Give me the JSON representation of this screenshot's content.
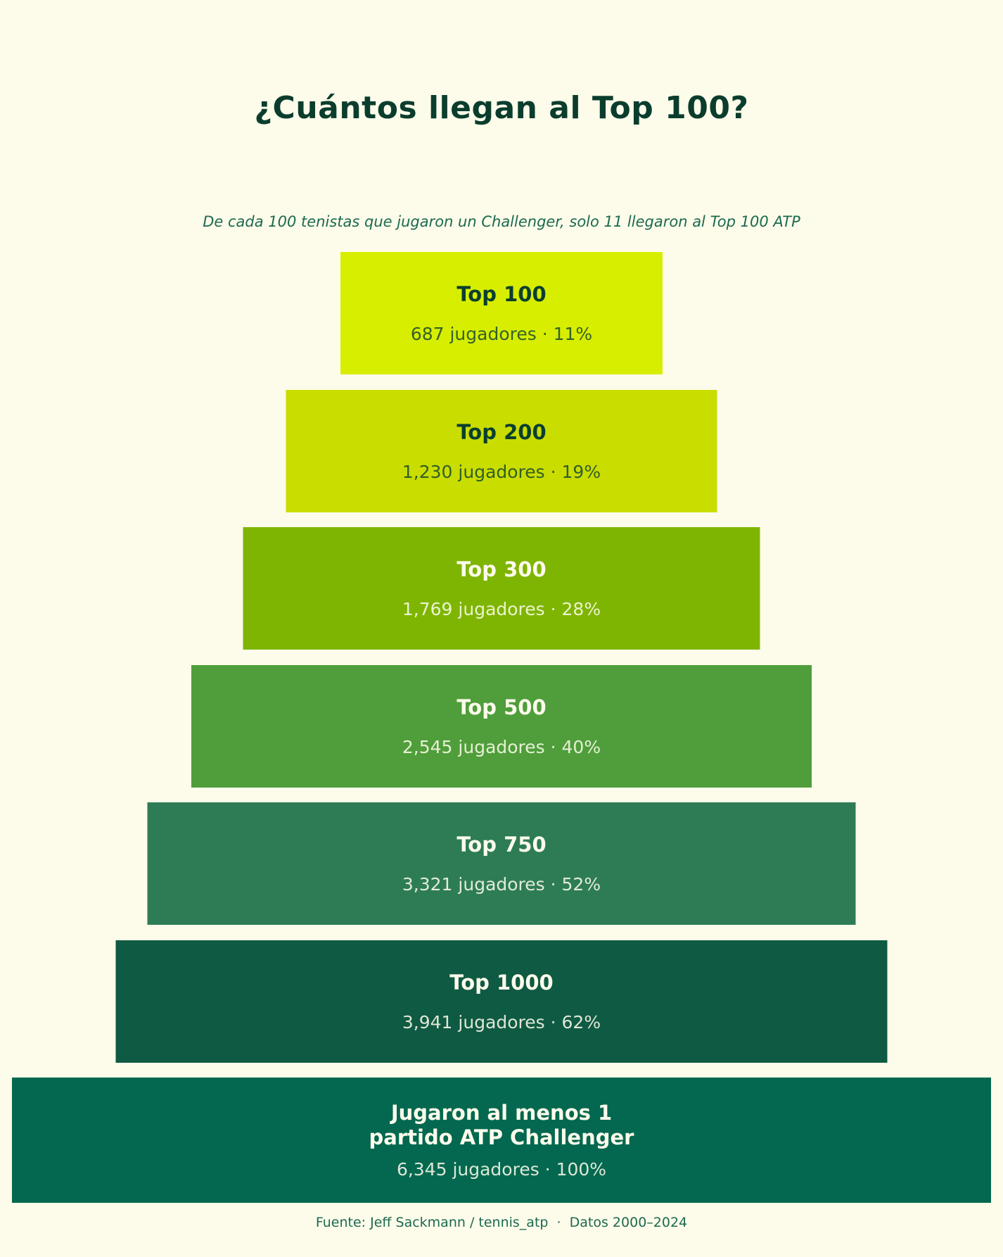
{
  "page": {
    "title": "¿Cuántos llegan al Top 100?",
    "subtitle": "De cada 100 tenistas que jugaron un Challenger, solo 11 llegaron al Top 100 ATP",
    "footer": "Fuente: Jeff Sackmann / tennis_atp  ·  Datos 2000–2024",
    "background_color": "#FDFBEA",
    "title_color": "#0B3D2D",
    "subtitle_color": "#1C6A50"
  },
  "chart_data": {
    "type": "funnel",
    "title": "¿Cuántos llegan al Top 100?",
    "subtitle": "De cada 100 tenistas que jugaron un Challenger, solo 11 llegaron al Top 100 ATP",
    "unit": "jugadores",
    "total_players": 6345,
    "legend_position": "none",
    "width_scale": "sqrt-of-share",
    "levels": [
      {
        "slug": "top-100",
        "label": "Top 100",
        "players": 687,
        "pct": 11,
        "detail": "687 jugadores · 11%",
        "color": "#D7EE00",
        "text_style": "dark"
      },
      {
        "slug": "top-200",
        "label": "Top 200",
        "players": 1230,
        "pct": 19,
        "detail": "1,230 jugadores · 19%",
        "color": "#CADD00",
        "text_style": "dark"
      },
      {
        "slug": "top-300",
        "label": "Top 300",
        "players": 1769,
        "pct": 28,
        "detail": "1,769 jugadores · 28%",
        "color": "#7EB502",
        "text_style": "light"
      },
      {
        "slug": "top-500",
        "label": "Top 500",
        "players": 2545,
        "pct": 40,
        "detail": "2,545 jugadores · 40%",
        "color": "#4F9E3B",
        "text_style": "light"
      },
      {
        "slug": "top-750",
        "label": "Top 750",
        "players": 3321,
        "pct": 52,
        "detail": "3,321 jugadores · 52%",
        "color": "#2D7C55",
        "text_style": "light"
      },
      {
        "slug": "top-1000",
        "label": "Top 1000",
        "players": 3941,
        "pct": 62,
        "detail": "3,941 jugadores · 62%",
        "color": "#0F5A42",
        "text_style": "light"
      },
      {
        "slug": "challenger-base",
        "label": "Jugaron al menos 1\npartido ATP Challenger",
        "players": 6345,
        "pct": 100,
        "detail": "6,345 jugadores · 100%",
        "color": "#03684F",
        "text_style": "light"
      }
    ]
  }
}
